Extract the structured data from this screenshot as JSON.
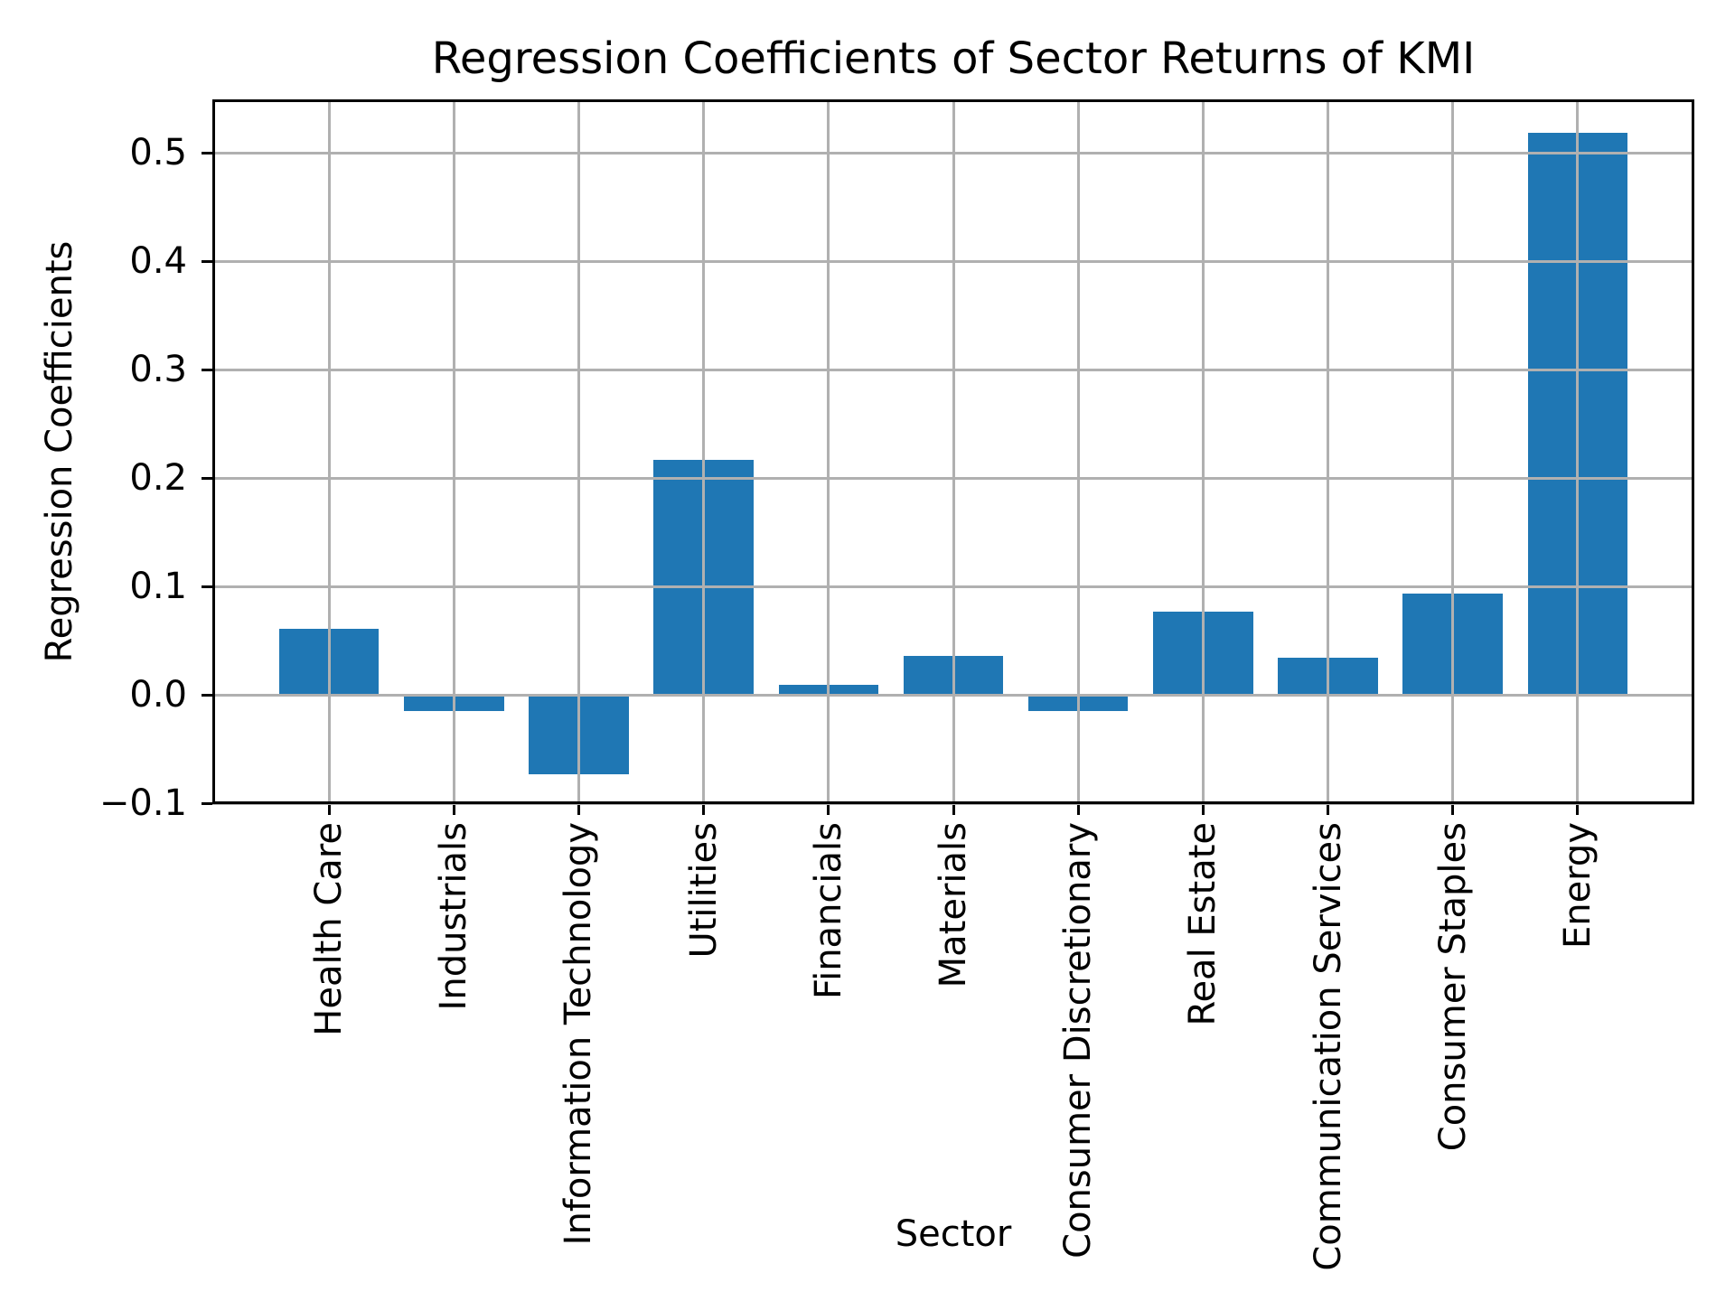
{
  "chart_data": {
    "type": "bar",
    "title": "Regression Coefficients of Sector Returns of KMI",
    "xlabel": "Sector",
    "ylabel": "Regression Coefficients",
    "categories": [
      "Health Care",
      "Industrials",
      "Information Technology",
      "Utilities",
      "Financials",
      "Materials",
      "Consumer Discretionary",
      "Real Estate",
      "Communication Services",
      "Consumer Staples",
      "Energy"
    ],
    "values": [
      0.061,
      -0.015,
      -0.073,
      0.217,
      0.009,
      0.036,
      -0.015,
      0.077,
      0.034,
      0.093,
      0.518
    ],
    "yticks": [
      -0.1,
      0.0,
      0.1,
      0.2,
      0.3,
      0.4,
      0.5
    ],
    "ytick_labels": [
      "−0.1",
      "0.0",
      "0.1",
      "0.2",
      "0.3",
      "0.4",
      "0.5"
    ],
    "ylim": [
      -0.10083,
      0.54917
    ],
    "grid": true,
    "legend": false,
    "bar_color": "#1f77b4",
    "grid_color": "#b0b0b0",
    "axis_color": "#000000",
    "text_color": "#000000"
  }
}
